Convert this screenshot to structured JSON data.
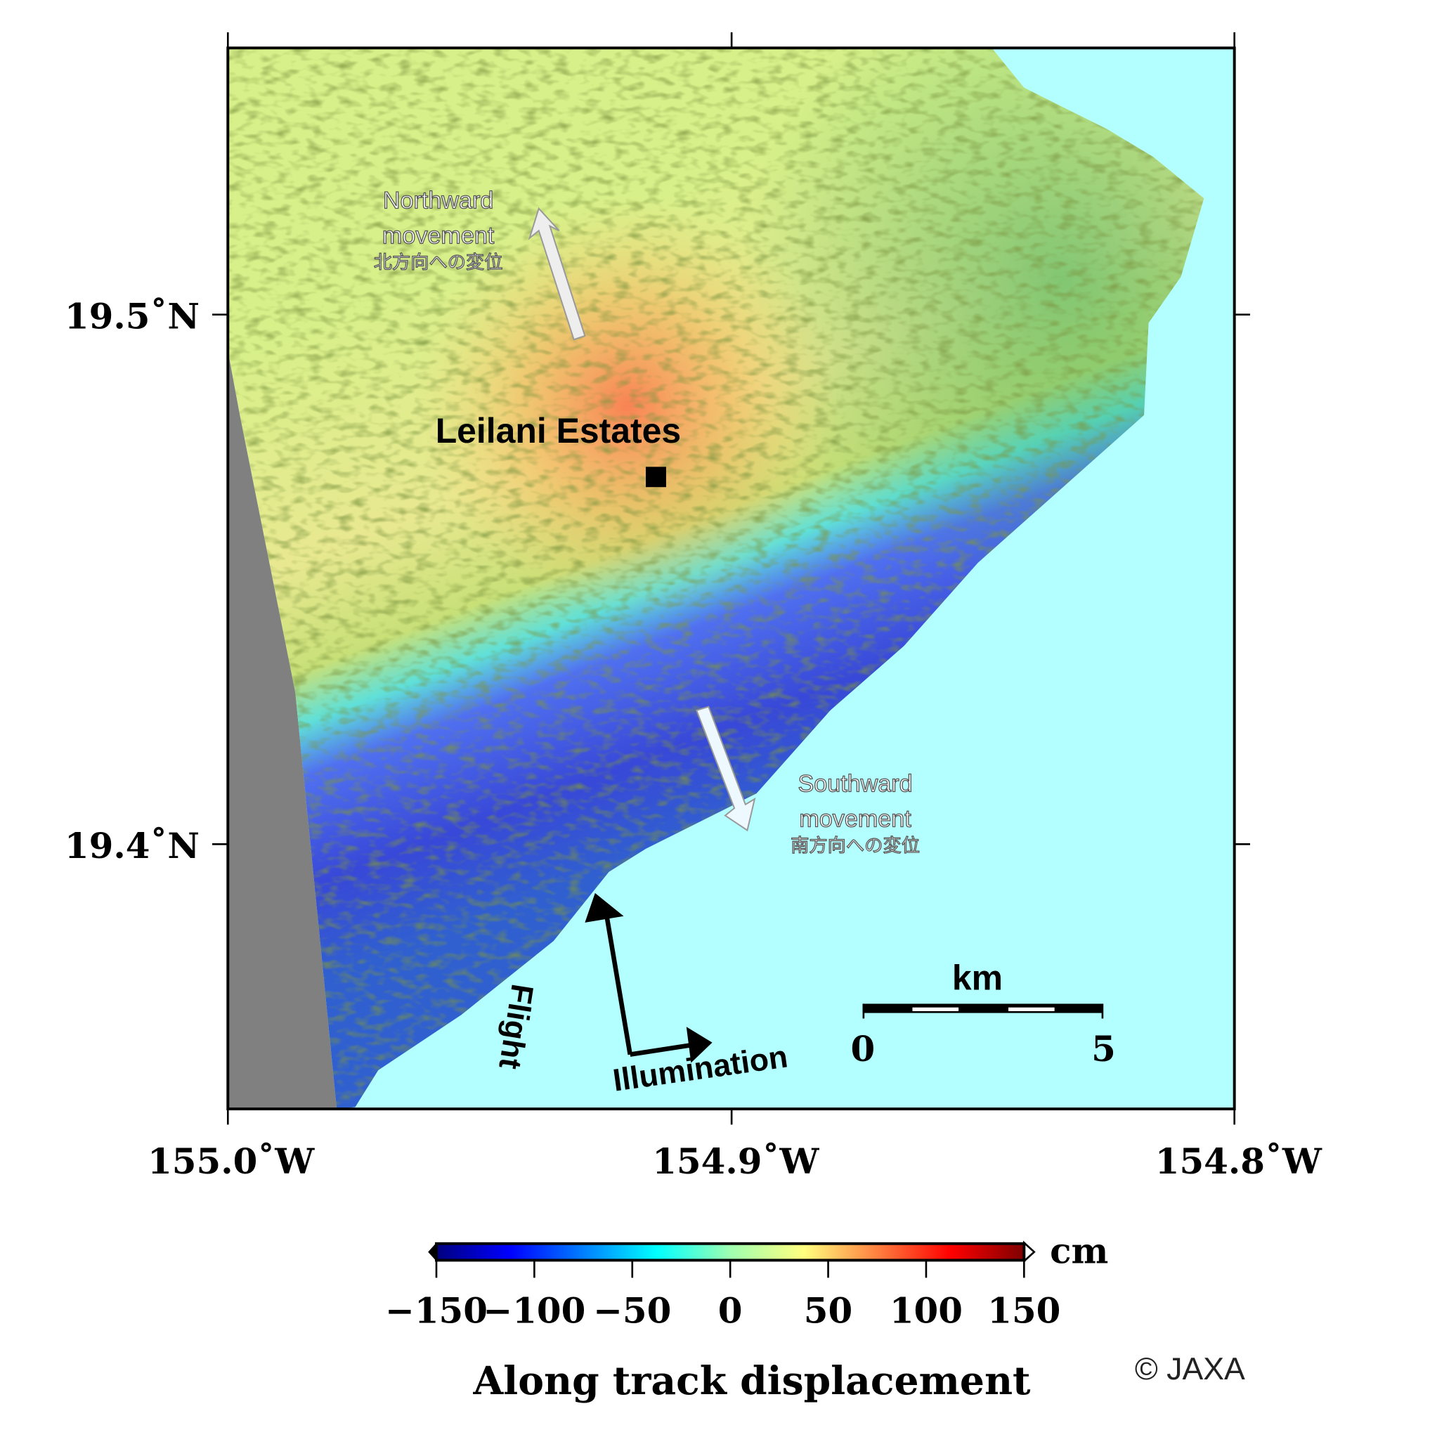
{
  "map": {
    "lat_labels": [
      "19.5˚N",
      "19.4˚N"
    ],
    "lon_labels": [
      "155.0˚W",
      "154.9˚W",
      "154.8˚W"
    ],
    "place": {
      "name": "Leilani Estates"
    },
    "annotations": {
      "north": {
        "line1": "Northward",
        "line2": "movement",
        "line3": "北方向への変位"
      },
      "south": {
        "line1": "Southward",
        "line2": "movement",
        "line3": "南方向への変位"
      }
    },
    "flight_label": "Flight",
    "illumination_label": "Illumination",
    "scale_bar": {
      "unit": "km",
      "min_label": "0",
      "max_label": "5"
    },
    "colors": {
      "ocean": "#b3ffff",
      "no_data": "#808080"
    }
  },
  "colorbar": {
    "unit": "cm",
    "title": "Along track displacement",
    "ticks": [
      "−150",
      "−100",
      "−50",
      "0",
      "50",
      "100",
      "150"
    ],
    "range": [
      -150,
      150
    ],
    "colormap": [
      "#00007f",
      "#0000ff",
      "#007fff",
      "#00ffff",
      "#7fffbf",
      "#ffff7f",
      "#ff7f3f",
      "#ff0000",
      "#7f0000"
    ]
  },
  "credit": "© JAXA"
}
